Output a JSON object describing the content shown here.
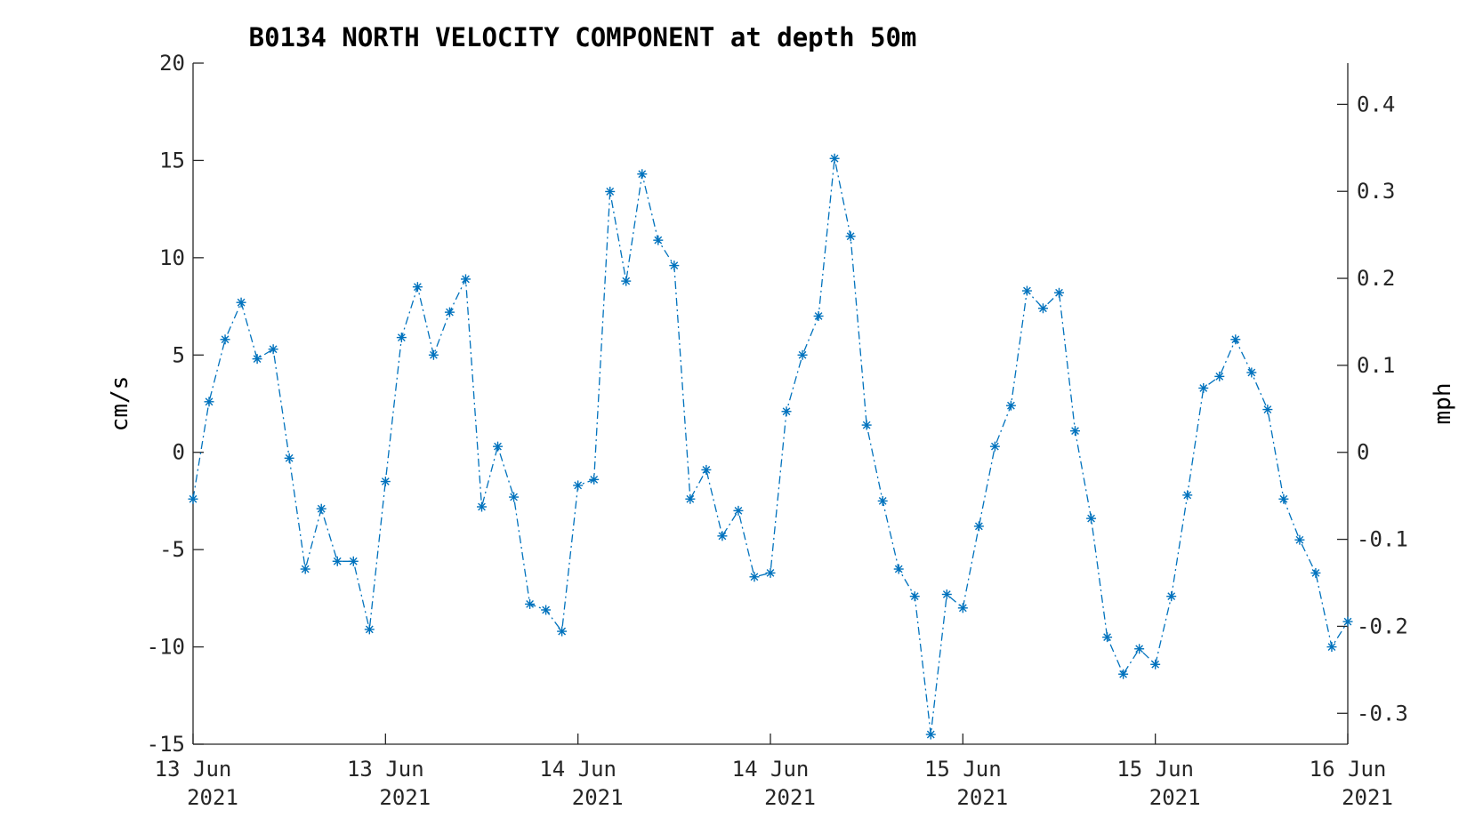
{
  "chart_data": {
    "type": "line",
    "title": "B0134 NORTH VELOCITY COMPONENT at depth 50m",
    "xlabel": "",
    "ylabel": "cm/s",
    "ylabel_right": "mph",
    "ylim": [
      -15,
      20
    ],
    "ylim_right": [
      -0.3355,
      0.4474
    ],
    "yticks": [
      20,
      15,
      10,
      5,
      0,
      -5,
      -10,
      -15
    ],
    "ytick_labels": [
      "20",
      "15",
      "10",
      "5",
      "0",
      "-5",
      "-10",
      "-15"
    ],
    "yticks_right": [
      0.4,
      0.3,
      0.2,
      0.1,
      0,
      -0.1,
      -0.2,
      -0.3
    ],
    "ytick_labels_right": [
      "0.4",
      "0.3",
      "0.2",
      "0.1",
      "0",
      "-0.1",
      "-0.2",
      "-0.3"
    ],
    "xlim_hours": [
      0,
      72
    ],
    "xticks_hours": [
      0,
      12,
      24,
      36,
      48,
      60,
      72
    ],
    "xtick_labels": [
      {
        "line1": "13 Jun",
        "line2": "2021"
      },
      {
        "line1": "13 Jun",
        "line2": "2021"
      },
      {
        "line1": "14 Jun",
        "line2": "2021"
      },
      {
        "line1": "14 Jun",
        "line2": "2021"
      },
      {
        "line1": "15 Jun",
        "line2": "2021"
      },
      {
        "line1": "15 Jun",
        "line2": "2021"
      },
      {
        "line1": "16 Jun",
        "line2": "2021"
      }
    ],
    "marker": "asterisk",
    "line_style": "dash-dot",
    "color": "#0072BD",
    "grid": false,
    "x_hours": [
      0,
      1,
      2,
      3,
      4,
      5,
      6,
      7,
      8,
      9,
      10,
      11,
      12,
      13,
      14,
      15,
      16,
      17,
      18,
      19,
      20,
      21,
      22,
      23,
      24,
      25,
      26,
      27,
      28,
      29,
      30,
      31,
      32,
      33,
      34,
      35,
      36,
      37,
      38,
      39,
      40,
      41,
      42,
      43,
      44,
      45,
      46,
      47,
      48,
      49,
      50,
      51,
      52,
      53,
      54,
      55,
      56,
      57,
      58,
      59,
      60,
      61,
      62,
      63,
      64,
      65,
      66,
      67,
      68,
      69,
      70,
      71,
      72
    ],
    "values": [
      -2.4,
      2.6,
      5.8,
      7.7,
      4.8,
      5.3,
      -0.3,
      -6.0,
      -2.9,
      -5.6,
      -5.6,
      -9.1,
      -1.5,
      5.9,
      8.5,
      5.0,
      7.2,
      8.9,
      -2.8,
      0.3,
      -2.3,
      -7.8,
      -8.1,
      -9.2,
      -1.7,
      -1.4,
      13.4,
      8.8,
      14.3,
      10.9,
      9.6,
      -2.4,
      -0.9,
      -4.3,
      -3.0,
      -6.4,
      -6.2,
      2.1,
      5.0,
      7.0,
      15.1,
      11.1,
      1.4,
      -2.5,
      -6.0,
      -7.4,
      -14.5,
      -7.3,
      -8.0,
      -3.8,
      0.3,
      2.4,
      8.3,
      7.4,
      8.2,
      1.1,
      -3.4,
      -9.5,
      -11.4,
      -10.1,
      -10.9,
      -7.4,
      -2.2,
      3.3,
      3.9,
      5.8,
      4.1,
      2.2,
      -2.4,
      -4.5,
      -6.2,
      -10.0,
      -8.7
    ]
  }
}
